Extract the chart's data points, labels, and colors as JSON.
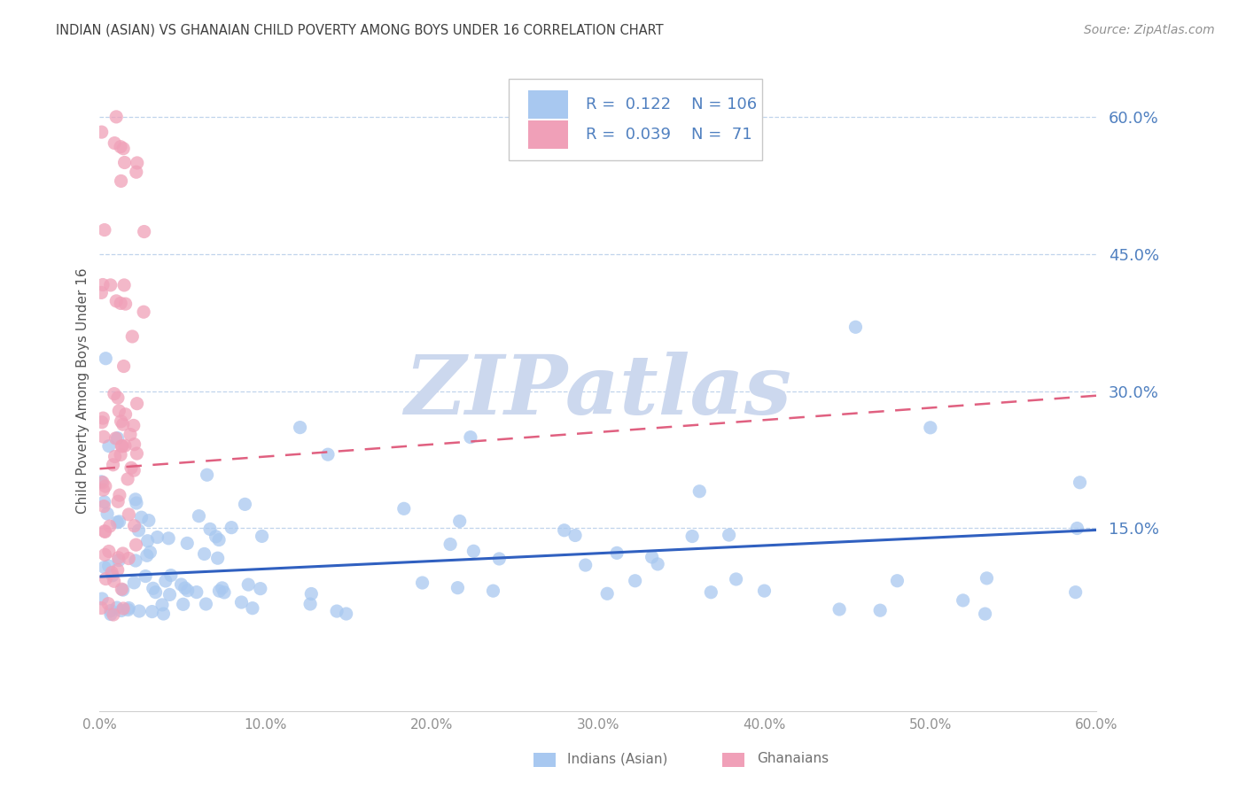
{
  "title": "INDIAN (ASIAN) VS GHANAIAN CHILD POVERTY AMONG BOYS UNDER 16 CORRELATION CHART",
  "source": "Source: ZipAtlas.com",
  "ylabel": "Child Poverty Among Boys Under 16",
  "xlim": [
    0.0,
    0.6
  ],
  "ylim": [
    0.0,
    0.65
  ],
  "plot_ylim": [
    -0.05,
    0.65
  ],
  "yticks": [
    0.15,
    0.3,
    0.45,
    0.6
  ],
  "ytick_labels": [
    "15.0%",
    "30.0%",
    "45.0%",
    "60.0%"
  ],
  "xticks": [
    0.0,
    0.1,
    0.2,
    0.3,
    0.4,
    0.5,
    0.6
  ],
  "xtick_labels": [
    "0.0%",
    "10.0%",
    "20.0%",
    "30.0%",
    "40.0%",
    "50.0%",
    "60.0%"
  ],
  "legend_R_indian": "0.122",
  "legend_N_indian": "106",
  "legend_R_ghanaian": "0.039",
  "legend_N_ghanaian": "71",
  "indian_color": "#a8c8f0",
  "ghanaian_color": "#f0a0b8",
  "indian_line_color": "#3060c0",
  "ghanaian_line_color": "#e06080",
  "title_color": "#404040",
  "tick_label_color": "#5080c0",
  "xtick_label_color": "#909090",
  "watermark": "ZIPatlas",
  "watermark_color": "#ccd8ee",
  "background_color": "#ffffff",
  "grid_color": "#c0d4ec",
  "indian_trendline": [
    0.097,
    0.148
  ],
  "ghanaian_trendline": [
    0.215,
    0.295
  ],
  "legend_label_color": "#5080c0"
}
